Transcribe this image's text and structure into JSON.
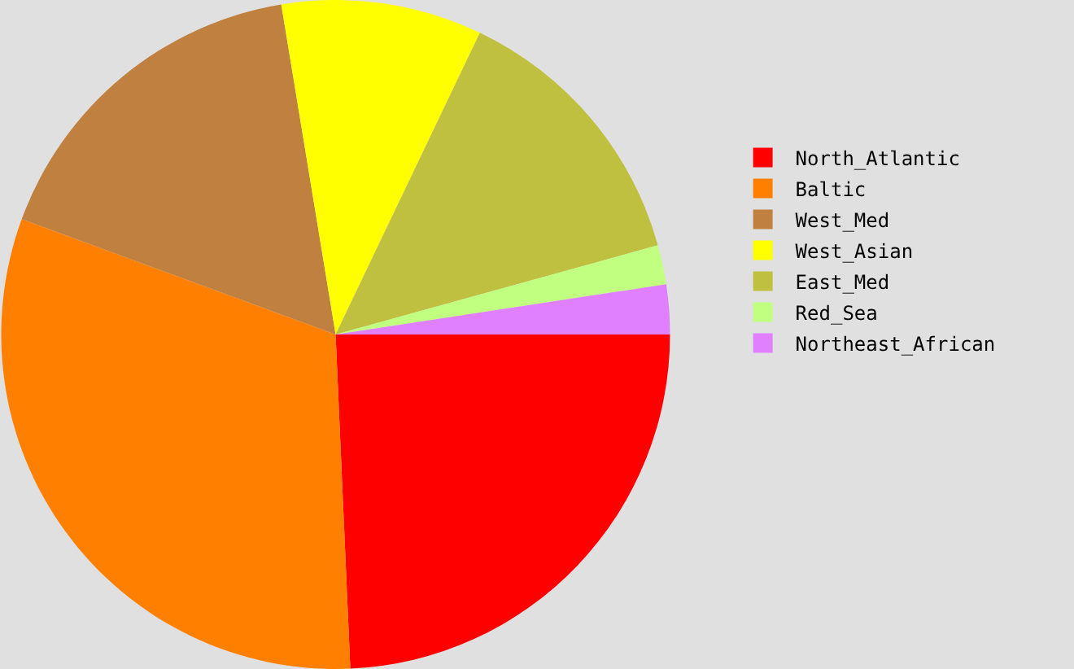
{
  "chart_data": {
    "type": "pie",
    "categories": [
      "North_Atlantic",
      "Baltic",
      "West_Med",
      "West_Asian",
      "East_Med",
      "Red_Sea",
      "Northeast_African"
    ],
    "values": [
      24.3,
      31.3,
      16.8,
      9.7,
      13.6,
      1.9,
      2.4
    ],
    "colors": [
      "#ff0000",
      "#ff8000",
      "#c08040",
      "#ffff00",
      "#c0c040",
      "#c0ff80",
      "#e080ff"
    ],
    "legend": "right"
  }
}
